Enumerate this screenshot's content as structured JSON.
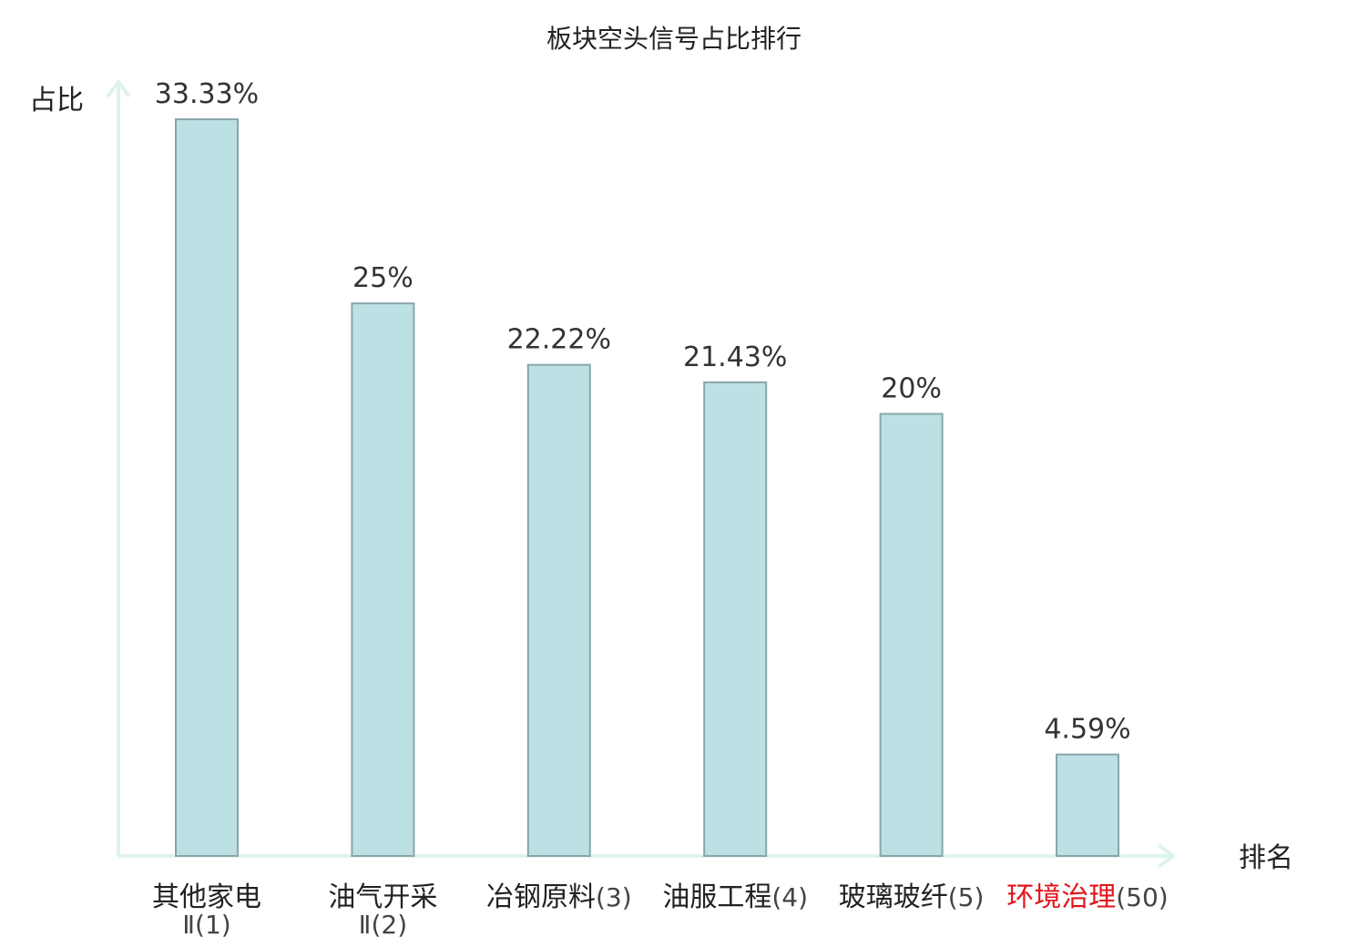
{
  "chart_data": {
    "type": "bar",
    "title": "板块空头信号占比排行",
    "ylabel": "占比",
    "xlabel": "排名",
    "grid": false,
    "ylim": [
      0,
      35
    ],
    "categories": [
      {
        "name": "其他家电",
        "rank": "Ⅱ(1)",
        "highlight": false
      },
      {
        "name": "油气开采",
        "rank": "Ⅱ(2)",
        "highlight": false
      },
      {
        "name": "冶钢原料",
        "rank": "(3)",
        "highlight": false
      },
      {
        "name": "油服工程",
        "rank": "(4)",
        "highlight": false
      },
      {
        "name": "玻璃玻纤",
        "rank": "(5)",
        "highlight": false
      },
      {
        "name": "环境治理",
        "rank": "(50)",
        "highlight": true
      }
    ],
    "values": [
      33.33,
      25,
      22.22,
      21.43,
      20,
      4.59
    ],
    "value_labels": [
      "33.33%",
      "25%",
      "22.22%",
      "21.43%",
      "20%",
      "4.59%"
    ]
  },
  "colors": {
    "bar_fill": "#bce0e3",
    "bar_stroke": "#8aa6aa",
    "axis": "#e0f2ef",
    "highlight_text": "#e0161b",
    "normal_text": "#222222",
    "rank_text": "#444444"
  }
}
